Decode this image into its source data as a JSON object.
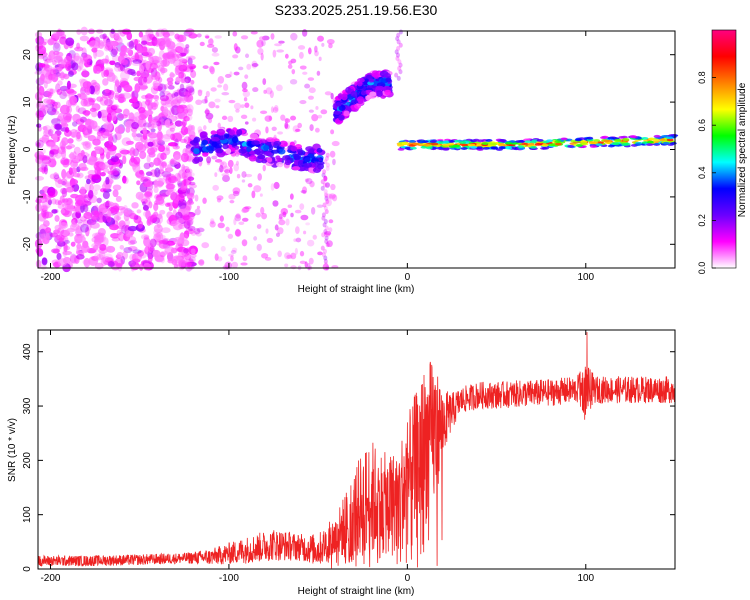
{
  "title": "S233.2025.251.19.56.E30",
  "chart_data": [
    {
      "type": "heatmap",
      "title": "S233.2025.251.19.56.E30",
      "xlabel": "Height of straight line (km)",
      "ylabel": "Frequency (Hz)",
      "xlim": [
        -207,
        150
      ],
      "ylim": [
        -25,
        25
      ],
      "xticks": [
        -200,
        -100,
        0,
        100
      ],
      "yticks": [
        -20,
        -10,
        0,
        10,
        20
      ],
      "colorbar": {
        "label": "Normalized spectral amplitude",
        "range": [
          0.0,
          1.0
        ],
        "ticks": [
          0.0,
          0.2,
          0.4,
          0.6,
          0.8
        ],
        "tick_labels": [
          "0.0",
          "0.2",
          "0.4",
          "0.6",
          "0.8"
        ],
        "colors": [
          "#ffffff",
          "#ff00ff",
          "#6a00ff",
          "#0000ff",
          "#00ffff",
          "#00ff00",
          "#ffff00",
          "#ff8000",
          "#ff0000",
          "#ff0080"
        ]
      },
      "features": [
        {
          "name": "background noise",
          "x_range": [
            -207,
            -120
          ],
          "freq_range": [
            -25,
            25
          ],
          "amplitude": 0.15
        },
        {
          "name": "descending band",
          "x": [
            -120,
            -100,
            -80,
            -60,
            -48
          ],
          "freq": [
            0,
            2,
            0,
            -2,
            -2
          ],
          "amplitude": 0.35
        },
        {
          "name": "rising band",
          "x": [
            -40,
            -30,
            -20,
            -10
          ],
          "freq": [
            8,
            11,
            14,
            14
          ],
          "amplitude": 0.35
        },
        {
          "name": "steady band",
          "x": [
            -5,
            20,
            60,
            100,
            150
          ],
          "freq": [
            1,
            1,
            1,
            1.5,
            2
          ],
          "amplitude": 0.85
        }
      ]
    },
    {
      "type": "line",
      "xlabel": "Height of straight line (km)",
      "ylabel": "SNR (10 * v/v)",
      "xlim": [
        -207,
        150
      ],
      "ylim": [
        0,
        440
      ],
      "xticks": [
        -200,
        -100,
        0,
        100
      ],
      "yticks": [
        0,
        100,
        200,
        300,
        400
      ],
      "series": [
        {
          "name": "SNR",
          "color": "#ee2222",
          "x": [
            -207,
            -180,
            -150,
            -125,
            -110,
            -90,
            -75,
            -60,
            -50,
            -40,
            -30,
            -25,
            -20,
            -15,
            -10,
            -5,
            0,
            5,
            10,
            15,
            20,
            25,
            30,
            40,
            50,
            60,
            80,
            95,
            100,
            105,
            120,
            150
          ],
          "base": [
            15,
            15,
            17,
            20,
            22,
            35,
            45,
            40,
            35,
            60,
            100,
            120,
            130,
            120,
            120,
            130,
            160,
            190,
            230,
            250,
            270,
            290,
            310,
            320,
            320,
            322,
            325,
            330,
            330,
            330,
            330,
            330
          ],
          "noise": [
            10,
            10,
            10,
            10,
            15,
            25,
            30,
            25,
            30,
            40,
            80,
            100,
            110,
            100,
            90,
            100,
            120,
            140,
            150,
            140,
            60,
            35,
            25,
            25,
            25,
            25,
            25,
            25,
            50,
            25,
            25,
            25
          ]
        }
      ]
    }
  ]
}
